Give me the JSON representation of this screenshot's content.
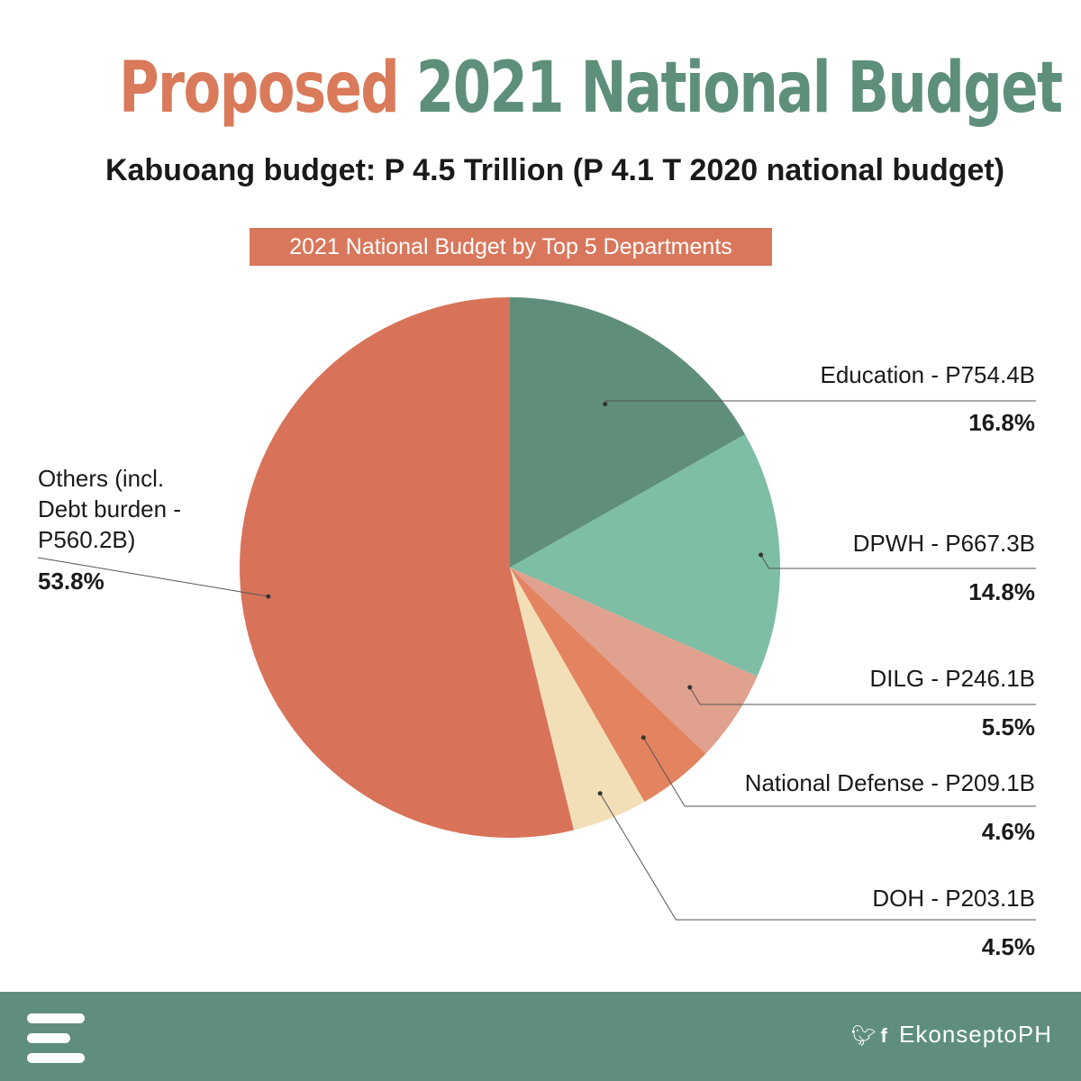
{
  "title": {
    "part1": "Proposed",
    "part2": "2021 National Budget"
  },
  "subtitle": "Kabuoang budget: P 4.5 Trillion (P 4.1 T 2020 national budget)",
  "chart_tag": "2021 National Budget by Top 5 Departments",
  "chart_data": {
    "type": "pie",
    "title": "2021 National Budget by Top 5 Departments",
    "slices": [
      {
        "label": "Education - P754.4B",
        "percent_label": "16.8%",
        "value": 16.8,
        "color": "#5f8f7b"
      },
      {
        "label": "DPWH - P667.3B",
        "percent_label": "14.8%",
        "value": 14.8,
        "color": "#7dbea5"
      },
      {
        "label": "DILG - P246.1B",
        "percent_label": "5.5%",
        "value": 5.5,
        "color": "#e0a18e"
      },
      {
        "label": "National Defense - P209.1B",
        "percent_label": "4.6%",
        "value": 4.6,
        "color": "#e3835f"
      },
      {
        "label": "DOH - P203.1B",
        "percent_label": "4.5%",
        "value": 4.5,
        "color": "#f3dfb7"
      },
      {
        "label_lines": [
          "Others (incl.",
          "Debt burden -",
          "P560.2B)"
        ],
        "percent_label": "53.8%",
        "value": 53.8,
        "color": "#d87359"
      }
    ]
  },
  "footer": {
    "handle": "EkonseptoPH",
    "icons": [
      "menu-icon",
      "twitter-icon",
      "facebook-icon"
    ],
    "background": "#5f8f7c"
  }
}
